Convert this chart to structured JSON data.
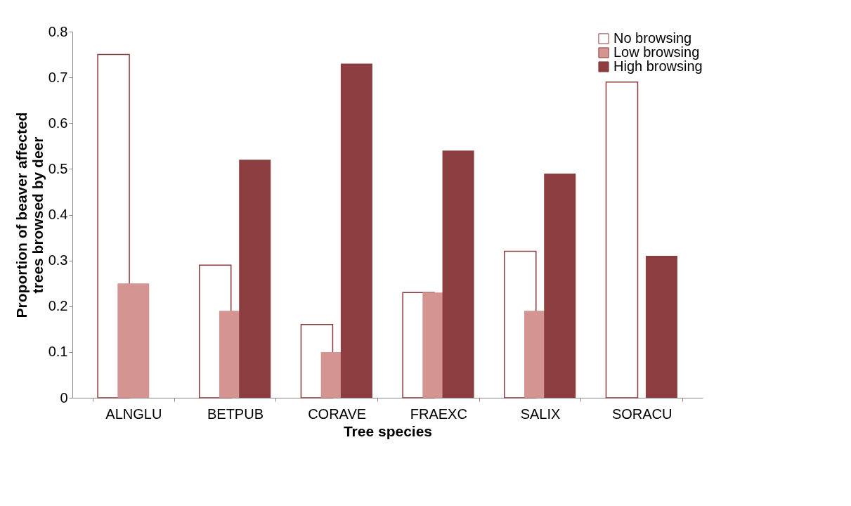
{
  "chart_data": {
    "type": "bar",
    "xlabel": "Tree species",
    "ylabel": "Proportion of beaver affected trees browsed by deer",
    "categories": [
      "ALNGLU",
      "BETPUB",
      "CORAVE",
      "FRAEXC",
      "SALIX",
      "SORACU"
    ],
    "series": [
      {
        "name": "No browsing",
        "color": "#ffffff",
        "values": [
          0.75,
          0.29,
          0.16,
          0.23,
          0.32,
          0.69
        ]
      },
      {
        "name": "Low browsing",
        "color": "#d49492",
        "values": [
          0.25,
          0.19,
          0.1,
          0.23,
          0.19,
          null
        ]
      },
      {
        "name": "High browsing",
        "color": "#8c3d3f",
        "values": [
          null,
          0.52,
          0.73,
          0.54,
          0.49,
          0.31
        ]
      }
    ],
    "ylim": [
      0,
      0.8
    ],
    "yticks": [
      0,
      0.1,
      0.2,
      0.3,
      0.4,
      0.5,
      0.6,
      0.7,
      0.8
    ],
    "grid": false,
    "legend": "top right"
  }
}
